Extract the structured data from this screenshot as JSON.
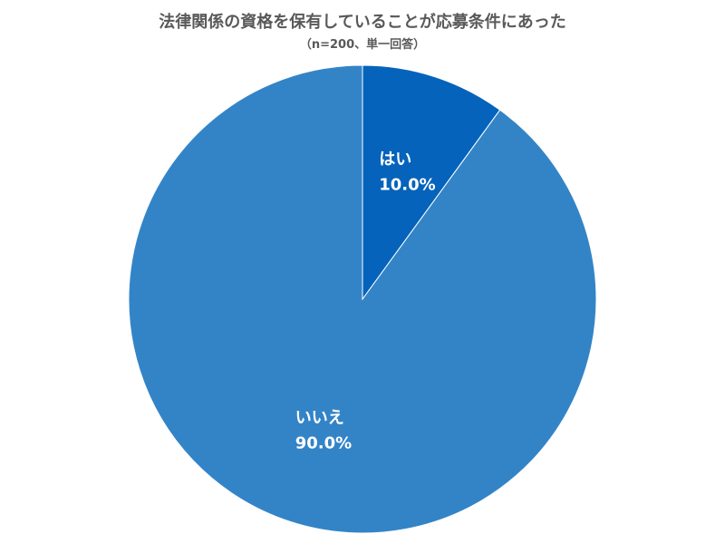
{
  "chart_data": {
    "type": "pie",
    "title": "法律関係の資格を保有していることが応募条件にあった",
    "subtitle": "（n=200、単一回答）",
    "slices": [
      {
        "label": "はい",
        "value": 10.0,
        "value_label": "10.0%",
        "color": "#0563BB"
      },
      {
        "label": "いいえ",
        "value": 90.0,
        "value_label": "90.0%",
        "color": "#3384C7"
      }
    ]
  }
}
